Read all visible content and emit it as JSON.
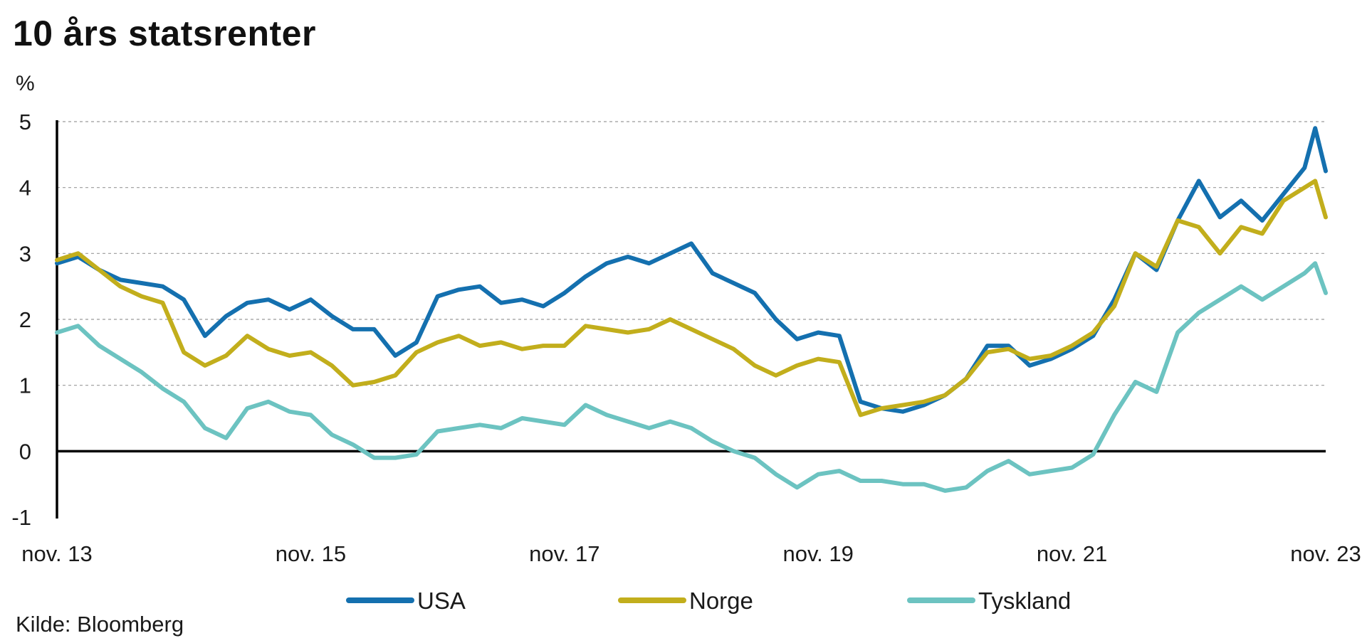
{
  "chart_data": {
    "type": "line",
    "title": "10 års statsrenter",
    "ylabel": "%",
    "source": "Kilde: Bloomberg",
    "ylim": [
      -1,
      5
    ],
    "yticks": [
      "5",
      "4",
      "3",
      "2",
      "1",
      "0",
      "-1"
    ],
    "xlim": [
      "2013-11",
      "2023-11"
    ],
    "xticks": [
      {
        "date": "2013-11",
        "label": "nov. 13"
      },
      {
        "date": "2015-11",
        "label": "nov. 15"
      },
      {
        "date": "2017-11",
        "label": "nov. 17"
      },
      {
        "date": "2019-11",
        "label": "nov. 19"
      },
      {
        "date": "2021-11",
        "label": "nov. 21"
      },
      {
        "date": "2023-11",
        "label": "nov. 23"
      }
    ],
    "grid": "horizontal dashed",
    "legend_position": "bottom",
    "series": [
      {
        "name": "USA",
        "color": "#1470AF",
        "x": [
          "2013-11",
          "2014-01",
          "2014-03",
          "2014-05",
          "2014-07",
          "2014-09",
          "2014-11",
          "2015-01",
          "2015-03",
          "2015-05",
          "2015-07",
          "2015-09",
          "2015-11",
          "2016-01",
          "2016-03",
          "2016-05",
          "2016-07",
          "2016-09",
          "2016-11",
          "2017-01",
          "2017-03",
          "2017-05",
          "2017-07",
          "2017-09",
          "2017-11",
          "2018-01",
          "2018-03",
          "2018-05",
          "2018-07",
          "2018-09",
          "2018-11",
          "2019-01",
          "2019-03",
          "2019-05",
          "2019-07",
          "2019-09",
          "2019-11",
          "2020-01",
          "2020-03",
          "2020-05",
          "2020-07",
          "2020-09",
          "2020-11",
          "2021-01",
          "2021-03",
          "2021-05",
          "2021-07",
          "2021-09",
          "2021-11",
          "2022-01",
          "2022-03",
          "2022-05",
          "2022-07",
          "2022-09",
          "2022-11",
          "2023-01",
          "2023-03",
          "2023-05",
          "2023-07",
          "2023-09",
          "2023-10",
          "2023-11"
        ],
        "values": [
          2.85,
          2.95,
          2.75,
          2.6,
          2.55,
          2.5,
          2.3,
          1.75,
          2.05,
          2.25,
          2.3,
          2.15,
          2.3,
          2.05,
          1.85,
          1.85,
          1.45,
          1.65,
          2.35,
          2.45,
          2.5,
          2.25,
          2.3,
          2.2,
          2.4,
          2.65,
          2.85,
          2.95,
          2.85,
          3.0,
          3.15,
          2.7,
          2.55,
          2.4,
          2.0,
          1.7,
          1.8,
          1.75,
          0.75,
          0.65,
          0.6,
          0.7,
          0.85,
          1.1,
          1.6,
          1.6,
          1.3,
          1.4,
          1.55,
          1.75,
          2.3,
          3.0,
          2.75,
          3.5,
          4.1,
          3.55,
          3.8,
          3.5,
          3.9,
          4.3,
          4.9,
          4.25
        ]
      },
      {
        "name": "Norge",
        "color": "#C2AE1C",
        "x": [
          "2013-11",
          "2014-01",
          "2014-03",
          "2014-05",
          "2014-07",
          "2014-09",
          "2014-11",
          "2015-01",
          "2015-03",
          "2015-05",
          "2015-07",
          "2015-09",
          "2015-11",
          "2016-01",
          "2016-03",
          "2016-05",
          "2016-07",
          "2016-09",
          "2016-11",
          "2017-01",
          "2017-03",
          "2017-05",
          "2017-07",
          "2017-09",
          "2017-11",
          "2018-01",
          "2018-03",
          "2018-05",
          "2018-07",
          "2018-09",
          "2018-11",
          "2019-01",
          "2019-03",
          "2019-05",
          "2019-07",
          "2019-09",
          "2019-11",
          "2020-01",
          "2020-03",
          "2020-05",
          "2020-07",
          "2020-09",
          "2020-11",
          "2021-01",
          "2021-03",
          "2021-05",
          "2021-07",
          "2021-09",
          "2021-11",
          "2022-01",
          "2022-03",
          "2022-05",
          "2022-07",
          "2022-09",
          "2022-11",
          "2023-01",
          "2023-03",
          "2023-05",
          "2023-07",
          "2023-09",
          "2023-10",
          "2023-11"
        ],
        "values": [
          2.9,
          3.0,
          2.75,
          2.5,
          2.35,
          2.25,
          1.5,
          1.3,
          1.45,
          1.75,
          1.55,
          1.45,
          1.5,
          1.3,
          1.0,
          1.05,
          1.15,
          1.5,
          1.65,
          1.75,
          1.6,
          1.65,
          1.55,
          1.6,
          1.6,
          1.9,
          1.85,
          1.8,
          1.85,
          2.0,
          1.85,
          1.7,
          1.55,
          1.3,
          1.15,
          1.3,
          1.4,
          1.35,
          0.55,
          0.65,
          0.7,
          0.75,
          0.85,
          1.1,
          1.5,
          1.55,
          1.4,
          1.45,
          1.6,
          1.8,
          2.2,
          3.0,
          2.8,
          3.5,
          3.4,
          3.0,
          3.4,
          3.3,
          3.8,
          4.0,
          4.1,
          3.55
        ]
      },
      {
        "name": "Tyskland",
        "color": "#6CC3C1",
        "x": [
          "2013-11",
          "2014-01",
          "2014-03",
          "2014-05",
          "2014-07",
          "2014-09",
          "2014-11",
          "2015-01",
          "2015-03",
          "2015-05",
          "2015-07",
          "2015-09",
          "2015-11",
          "2016-01",
          "2016-03",
          "2016-05",
          "2016-07",
          "2016-09",
          "2016-11",
          "2017-01",
          "2017-03",
          "2017-05",
          "2017-07",
          "2017-09",
          "2017-11",
          "2018-01",
          "2018-03",
          "2018-05",
          "2018-07",
          "2018-09",
          "2018-11",
          "2019-01",
          "2019-03",
          "2019-05",
          "2019-07",
          "2019-09",
          "2019-11",
          "2020-01",
          "2020-03",
          "2020-05",
          "2020-07",
          "2020-09",
          "2020-11",
          "2021-01",
          "2021-03",
          "2021-05",
          "2021-07",
          "2021-09",
          "2021-11",
          "2022-01",
          "2022-03",
          "2022-05",
          "2022-07",
          "2022-09",
          "2022-11",
          "2023-01",
          "2023-03",
          "2023-05",
          "2023-07",
          "2023-09",
          "2023-10",
          "2023-11"
        ],
        "values": [
          1.8,
          1.9,
          1.6,
          1.4,
          1.2,
          0.95,
          0.75,
          0.35,
          0.2,
          0.65,
          0.75,
          0.6,
          0.55,
          0.25,
          0.1,
          -0.1,
          -0.1,
          -0.05,
          0.3,
          0.35,
          0.4,
          0.35,
          0.5,
          0.45,
          0.4,
          0.7,
          0.55,
          0.45,
          0.35,
          0.45,
          0.35,
          0.15,
          0.0,
          -0.1,
          -0.35,
          -0.55,
          -0.35,
          -0.3,
          -0.45,
          -0.45,
          -0.5,
          -0.5,
          -0.6,
          -0.55,
          -0.3,
          -0.15,
          -0.35,
          -0.3,
          -0.25,
          -0.05,
          0.55,
          1.05,
          0.9,
          1.8,
          2.1,
          2.3,
          2.5,
          2.3,
          2.5,
          2.7,
          2.85,
          2.4
        ]
      }
    ]
  }
}
